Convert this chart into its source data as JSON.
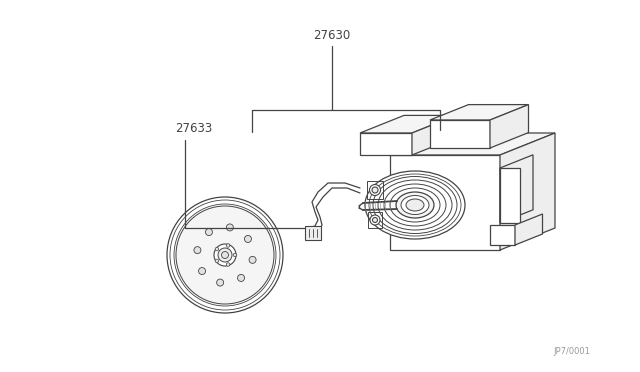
{
  "background_color": "#ffffff",
  "line_color": "#444444",
  "label_27630": "27630",
  "label_27633": "27633",
  "watermark": "JP7/0001",
  "fig_width": 6.4,
  "fig_height": 3.72,
  "dpi": 100
}
